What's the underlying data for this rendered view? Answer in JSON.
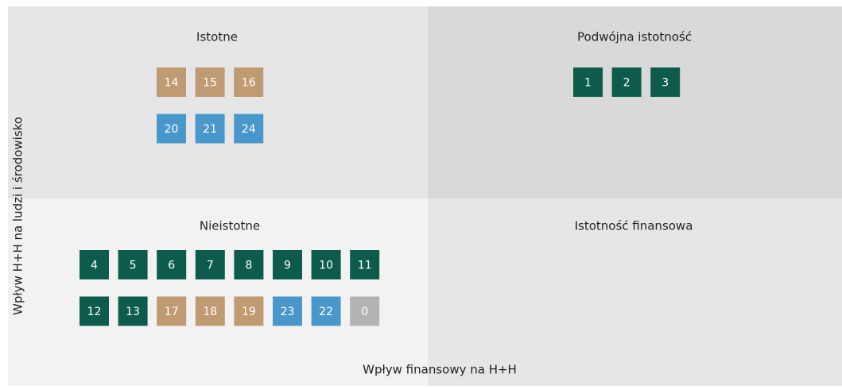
{
  "x_axis_label": "Wpływ finansowy na H+H",
  "y_axis_label": "Wpływ H+H na ludzi i środowisko",
  "quadrants": [
    {
      "title": "Istotne",
      "rows": [
        [
          {
            "label": "14",
            "color": "#bf9a72"
          },
          {
            "label": "15",
            "color": "#bf9a72"
          },
          {
            "label": "16",
            "color": "#bf9a72"
          }
        ],
        [
          {
            "label": "20",
            "color": "#4a98cb"
          },
          {
            "label": "21",
            "color": "#4a98cb"
          },
          {
            "label": "24",
            "color": "#4a98cb"
          }
        ]
      ]
    },
    {
      "title": "Podwójna istotność",
      "rows": [
        [
          {
            "label": "1",
            "color": "#0d5c4b"
          },
          {
            "label": "2",
            "color": "#0d5c4b"
          },
          {
            "label": "3",
            "color": "#0d5c4b"
          }
        ]
      ]
    },
    {
      "title": "Nieistotne",
      "rows": [
        [
          {
            "label": "4",
            "color": "#0d5c4b"
          },
          {
            "label": "5",
            "color": "#0d5c4b"
          },
          {
            "label": "6",
            "color": "#0d5c4b"
          },
          {
            "label": "7",
            "color": "#0d5c4b"
          },
          {
            "label": "8",
            "color": "#0d5c4b"
          },
          {
            "label": "9",
            "color": "#0d5c4b"
          },
          {
            "label": "10",
            "color": "#0d5c4b"
          },
          {
            "label": "11",
            "color": "#0d5c4b"
          }
        ],
        [
          {
            "label": "12",
            "color": "#0d5c4b"
          },
          {
            "label": "13",
            "color": "#0d5c4b"
          },
          {
            "label": "17",
            "color": "#bf9a72"
          },
          {
            "label": "18",
            "color": "#bf9a72"
          },
          {
            "label": "19",
            "color": "#bf9a72"
          },
          {
            "label": "23",
            "color": "#4a98cb"
          },
          {
            "label": "22",
            "color": "#4a98cb"
          },
          {
            "label": "0",
            "color": "#b3b3b3"
          }
        ]
      ]
    },
    {
      "title": "Istotność finansowa",
      "rows": []
    }
  ]
}
